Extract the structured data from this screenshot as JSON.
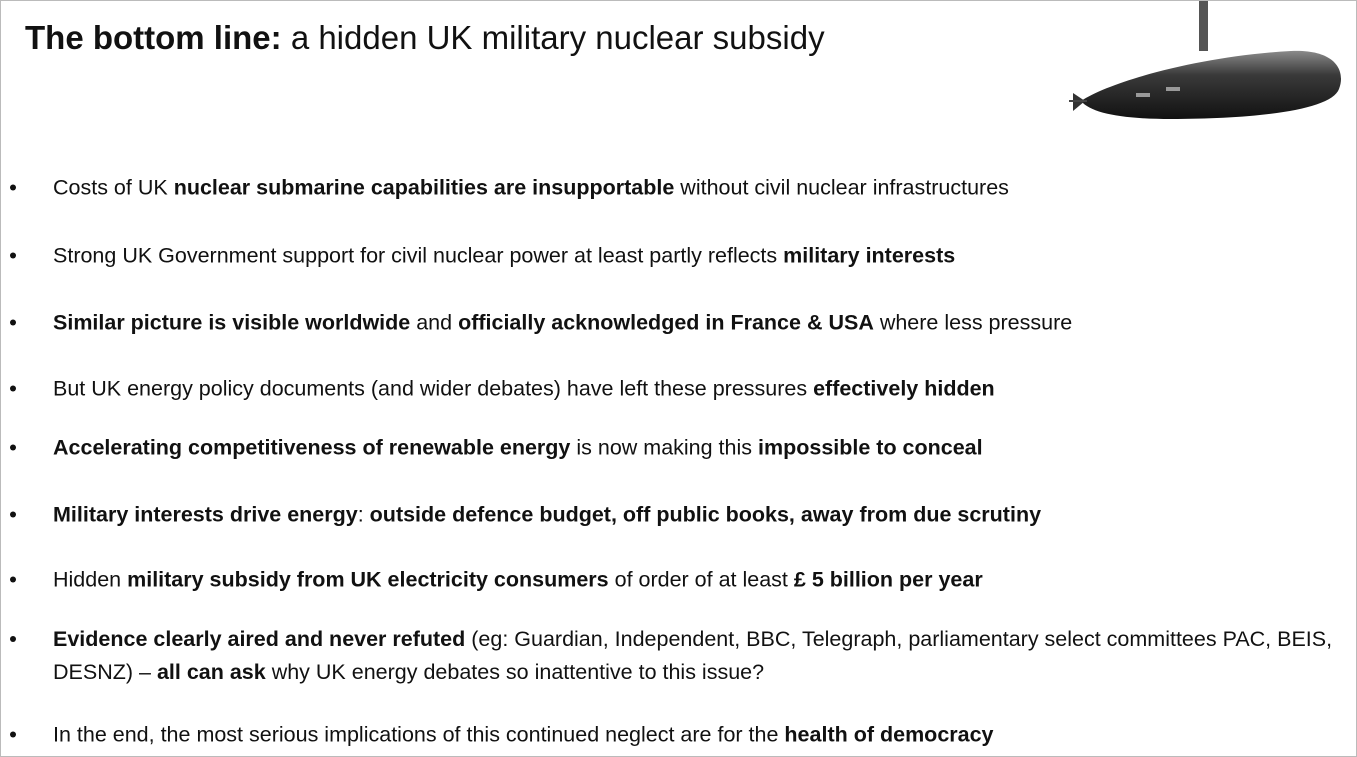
{
  "title": {
    "bold": "The bottom line:",
    "rest": "a hidden UK military nuclear subsidy"
  },
  "bullets": [
    {
      "runs": [
        {
          "text": "Costs of UK ",
          "bold": false
        },
        {
          "text": "nuclear submarine capabilities are insupportable",
          "bold": true
        },
        {
          "text": " without civil nuclear infrastructures",
          "bold": false
        }
      ]
    },
    {
      "runs": [
        {
          "text": "Strong UK Government support for civil nuclear power at least partly reflects ",
          "bold": false
        },
        {
          "text": "military interests",
          "bold": true
        }
      ]
    },
    {
      "runs": [
        {
          "text": "Similar picture is visible worldwide",
          "bold": true
        },
        {
          "text": " and ",
          "bold": false
        },
        {
          "text": "officially acknowledged in France & USA",
          "bold": true
        },
        {
          "text": " where less pressure",
          "bold": false
        }
      ]
    },
    {
      "runs": [
        {
          "text": "But UK energy policy documents (and wider debates) have left these pressures ",
          "bold": false
        },
        {
          "text": "effectively hidden",
          "bold": true
        }
      ]
    },
    {
      "runs": [
        {
          "text": "Accelerating competitiveness of renewable energy",
          "bold": true
        },
        {
          "text": " is now making this ",
          "bold": false
        },
        {
          "text": "impossible to conceal",
          "bold": true
        }
      ]
    },
    {
      "runs": [
        {
          "text": "Military interests drive energy",
          "bold": true
        },
        {
          "text": ": ",
          "bold": false
        },
        {
          "text": "outside defence budget, off public books, away from due scrutiny",
          "bold": true
        }
      ]
    },
    {
      "runs": [
        {
          "text": "Hidden ",
          "bold": false
        },
        {
          "text": "military subsidy from UK electricity consumers",
          "bold": true
        },
        {
          "text": " of order of at least ",
          "bold": false
        },
        {
          "text": "£ 5 billion per year",
          "bold": true
        }
      ]
    },
    {
      "runs": [
        {
          "text": "Evidence clearly aired and never refuted",
          "bold": true
        },
        {
          "text": " (eg: Guardian, Independent, BBC, Telegraph, parliamentary select committees PAC, BEIS, DESNZ) – ",
          "bold": false
        },
        {
          "text": "all can ask",
          "bold": true
        },
        {
          "text": " why UK energy debates so inattentive to this issue?",
          "bold": false
        }
      ]
    },
    {
      "runs": [
        {
          "text": "In the end, the most serious implications of this continued neglect are for the ",
          "bold": false
        },
        {
          "text": "health of democracy",
          "bold": true
        }
      ]
    }
  ]
}
